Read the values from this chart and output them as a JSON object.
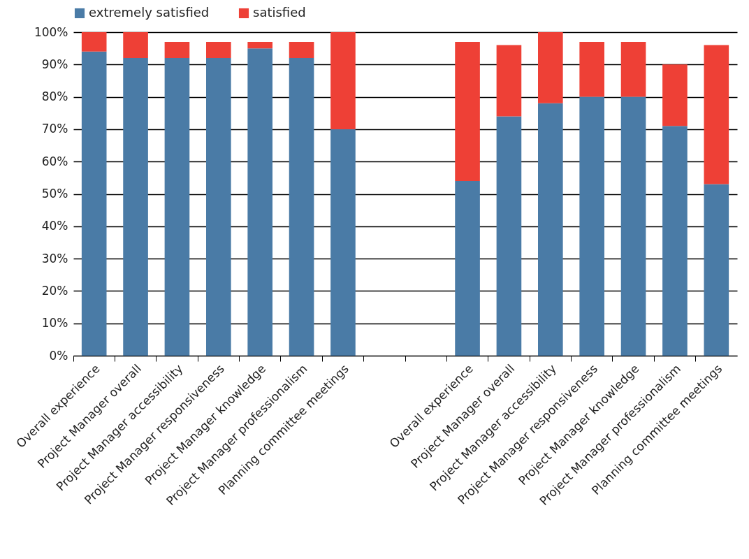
{
  "chart_data": {
    "type": "bar",
    "stacked": true,
    "categories": [
      "Overall experience",
      "Project Manager overall",
      "Project Manager accessibility",
      "Project Manager responsiveness",
      "Project Manager knowledge",
      "Project Manager professionalism",
      "Planning committee meetings",
      null,
      null,
      "Overall experience",
      "Project Manager overall",
      "Project Manager accessibility",
      "Project Manager responsiveness",
      "Project Manager knowledge",
      "Project Manager professionalism",
      "Planning committee meetings"
    ],
    "series": [
      {
        "name": "extremely satisfied",
        "color": "#4a7ba6",
        "values": [
          94,
          92,
          92,
          92,
          95,
          92,
          70,
          null,
          null,
          54,
          74,
          78,
          80,
          80,
          71,
          53
        ]
      },
      {
        "name": "satisfied",
        "color": "#ee4036",
        "values": [
          6,
          8,
          5,
          5,
          2,
          5,
          30,
          null,
          null,
          43,
          22,
          22,
          17,
          17,
          19,
          43
        ]
      }
    ],
    "ylim": [
      0,
      100
    ],
    "yticks": [
      {
        "value": 0,
        "label": "0%"
      },
      {
        "value": 10,
        "label": "10%"
      },
      {
        "value": 20,
        "label": "20%"
      },
      {
        "value": 30,
        "label": "30%"
      },
      {
        "value": 40,
        "label": "40%"
      },
      {
        "value": 50,
        "label": "50%"
      },
      {
        "value": 60,
        "label": "60%"
      },
      {
        "value": 70,
        "label": "70%"
      },
      {
        "value": 80,
        "label": "80%"
      },
      {
        "value": 90,
        "label": "90%"
      },
      {
        "value": 100,
        "label": "100%"
      }
    ],
    "grid": "y",
    "legend": "top"
  }
}
